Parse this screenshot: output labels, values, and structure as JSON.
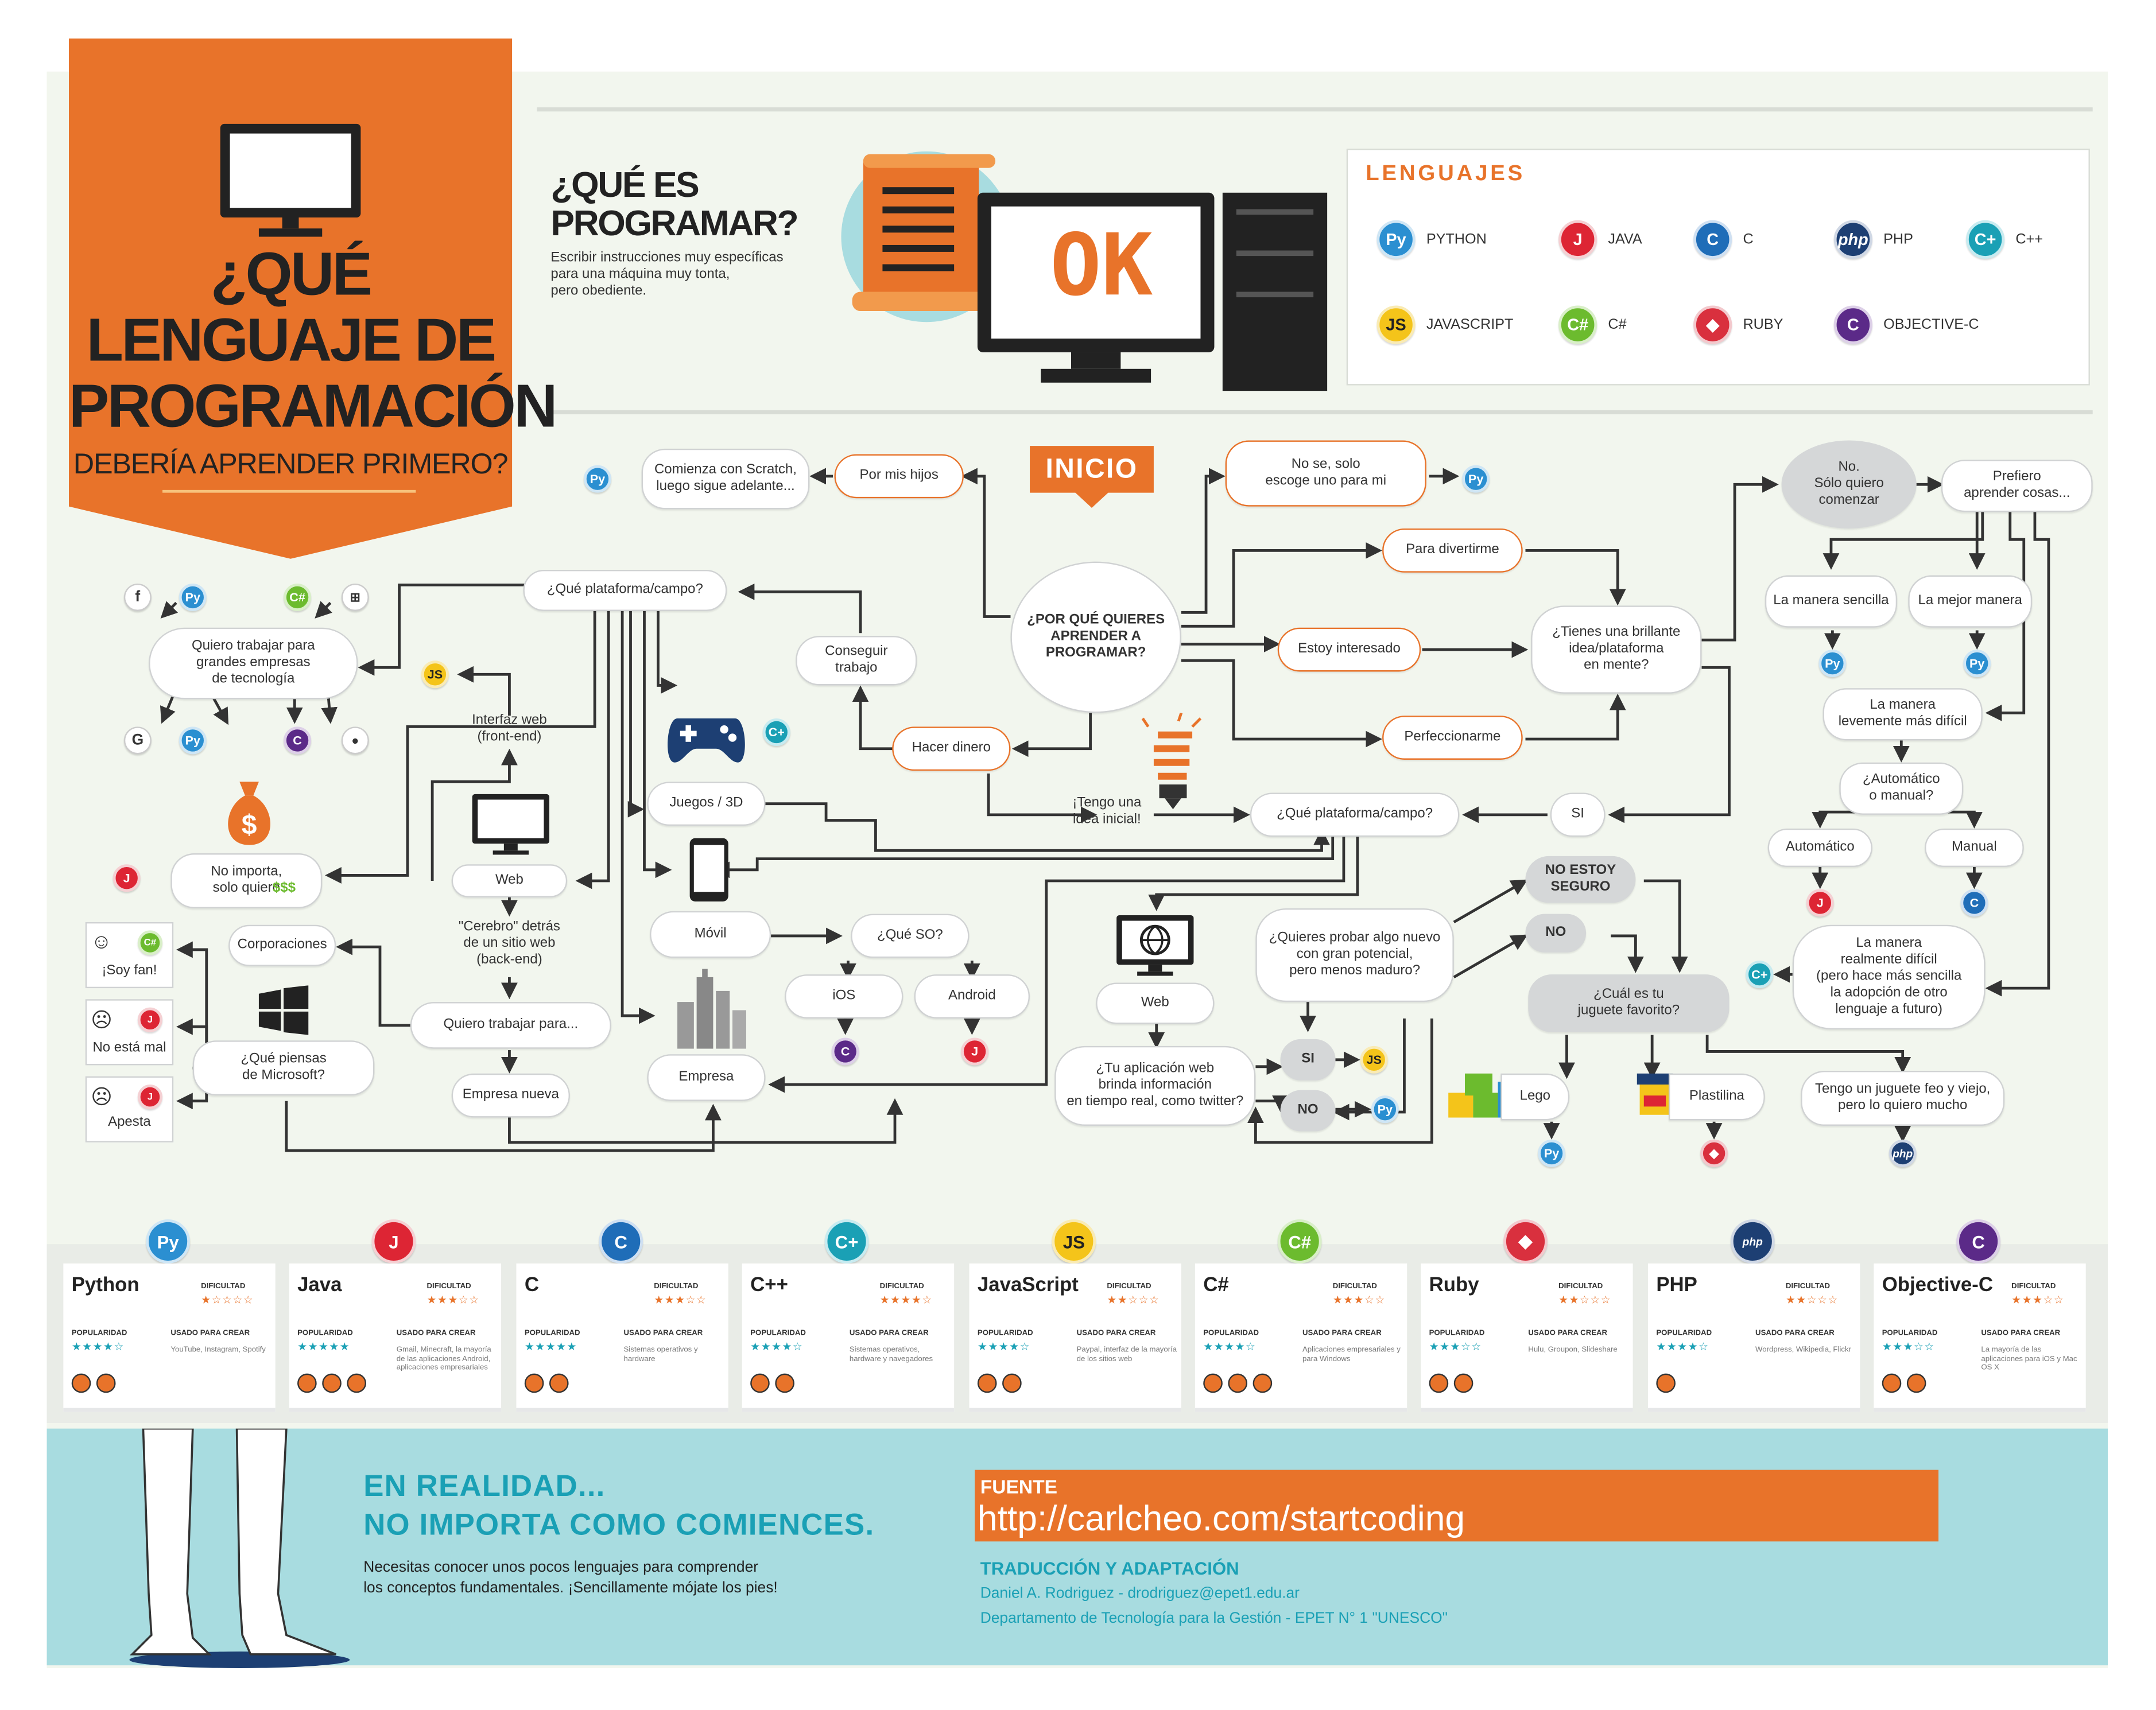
{
  "banner": {
    "title_lines": [
      "¿QUÉ",
      "LENGUAJE DE",
      "PROGRAMACIÓN"
    ],
    "subtitle": "DEBERÍA APRENDER PRIMERO?"
  },
  "intro": {
    "title_lines": [
      "¿QUÉ ES",
      "PROGRAMAR?"
    ],
    "text": "Escribir instrucciones muy específicas\npara una máquina muy tonta,\npero obediente.",
    "screen_text": "OK"
  },
  "languages_box": {
    "title": "LENGUAJES",
    "items": [
      {
        "label": "PYTHON",
        "icon": "python-icon",
        "glyph": "Py"
      },
      {
        "label": "JAVA",
        "icon": "java-icon",
        "glyph": "J"
      },
      {
        "label": "C",
        "icon": "c-icon",
        "glyph": "C"
      },
      {
        "label": "PHP",
        "icon": "php-icon",
        "glyph": "php"
      },
      {
        "label": "C++",
        "icon": "cpp-icon",
        "glyph": "C+"
      },
      {
        "label": "JAVASCRIPT",
        "icon": "javascript-icon",
        "glyph": "JS"
      },
      {
        "label": "C#",
        "icon": "csharp-icon",
        "glyph": "C#"
      },
      {
        "label": "RUBY",
        "icon": "ruby-icon",
        "glyph": "◆"
      },
      {
        "label": "OBJECTIVE-C",
        "icon": "objective-c-icon",
        "glyph": "C"
      }
    ]
  },
  "flow": {
    "start": "INICIO",
    "why": "¿POR QUÉ QUIERES\nAPRENDER A\nPROGRAMAR?",
    "for_kids": "Por mis hijos",
    "scratch": "Comienza con Scratch,\nluego sigue adelante...",
    "dont_know": "No se, solo\nescoge uno para mi",
    "fun": "Para divertirme",
    "interested": "Estoy interesado",
    "improve": "Perfeccionarme",
    "bright_idea": "¿Tienes una brillante\nidea/plataforma\nen mente?",
    "get_job": "Conseguir trabajo",
    "make_money": "Hacer dinero",
    "initial_idea": "¡Tengo una\nidea inicial!",
    "platform_right": "¿Qué plataforma/campo?",
    "yes_right": "SI",
    "platform_left": "¿Qué plataforma/campo?",
    "big_tech": "Quiero trabajar para\ngrandes empresas\nde tecnología",
    "dont_care": "No importa,\nsolo quiero",
    "dollars": "$$$",
    "web_front": "Interfaz web\n(front-end)",
    "web_left": "Web",
    "brain": "\"Cerebro\" detrás\nde un sitio web\n(back-end)",
    "want_work": "Quiero trabajar para...",
    "new_company": "Empresa nueva",
    "corporations": "Corporaciones",
    "microsoft": "¿Qué piensas\nde Microsoft?",
    "fan": "¡Soy fan!",
    "not_bad": "No está mal",
    "sucks": "Apesta",
    "games": "Juegos / 3D",
    "mobile": "Móvil",
    "which_os": "¿Qué SO?",
    "ios": "iOS",
    "android": "Android",
    "enterprise": "Empresa",
    "web_mid": "Web",
    "realtime": "¿Tu aplicación web\nbrinda información\nen tiempo real, como twitter?",
    "try_new": "¿Quieres probar algo nuevo\ncon gran potencial,\npero menos maduro?",
    "si": "SI",
    "no": "NO",
    "not_sure": "NO ESTOY\nSEGURO",
    "no2": "NO",
    "toy": "¿Cuál es tu\njuguete favorito?",
    "lego": "Lego",
    "play_doh": "Plastilina",
    "ugly_toy": "Tengo un juguete feo y viejo,\npero lo quiero mucho",
    "just_start": "No.\nSólo quiero\ncomenzar",
    "prefer": "Prefiero\naprender cosas...",
    "easy": "La manera sencilla",
    "best": "La mejor manera",
    "harder": "La manera\nlevemente más difícil",
    "auto_manual": "¿Automático\no manual?",
    "auto": "Automático",
    "manual": "Manual",
    "hardest": "La manera\nrealmente difícil\n(pero hace más sencilla\nla adopción de otro\nlenguaje a futuro)"
  },
  "cards": [
    {
      "name": "Python",
      "difficulty": "★☆☆☆☆",
      "popularity": "★★★★☆",
      "used_for": "YouTube, Instagram, Spotify",
      "devices": 2,
      "icon": "python-icon",
      "glyph": "Py",
      "cls": "py"
    },
    {
      "name": "Java",
      "difficulty": "★★★☆☆",
      "popularity": "★★★★★",
      "used_for": "Gmail, Minecraft, la mayoría de las aplicaciones Android, aplicaciones empresariales",
      "devices": 3,
      "icon": "java-icon",
      "glyph": "J",
      "cls": "ja"
    },
    {
      "name": "C",
      "difficulty": "★★★☆☆",
      "popularity": "★★★★★",
      "used_for": "Sistemas operativos y hardware",
      "devices": 2,
      "icon": "c-icon",
      "glyph": "C",
      "cls": "c"
    },
    {
      "name": "C++",
      "difficulty": "★★★★☆",
      "popularity": "★★★★☆",
      "used_for": "Sistemas operativos, hardware y navegadores",
      "devices": 2,
      "icon": "cpp-icon",
      "glyph": "C+",
      "cls": "cp"
    },
    {
      "name": "JavaScript",
      "difficulty": "★★☆☆☆",
      "popularity": "★★★★☆",
      "used_for": "Paypal, interfaz de la mayoría de los sitios web",
      "devices": 2,
      "icon": "javascript-icon",
      "glyph": "JS",
      "cls": "js"
    },
    {
      "name": "C#",
      "difficulty": "★★★☆☆",
      "popularity": "★★★★☆",
      "used_for": "Aplicaciones empresariales y para Windows",
      "devices": 3,
      "icon": "csharp-icon",
      "glyph": "C#",
      "cls": "cs"
    },
    {
      "name": "Ruby",
      "difficulty": "★★☆☆☆",
      "popularity": "★★★☆☆",
      "used_for": "Hulu, Groupon, Slideshare",
      "devices": 2,
      "icon": "ruby-icon",
      "glyph": "◆",
      "cls": "rb"
    },
    {
      "name": "PHP",
      "difficulty": "★★☆☆☆",
      "popularity": "★★★★☆",
      "used_for": "Wordpress, Wikipedia, Flickr",
      "devices": 1,
      "icon": "php-icon",
      "glyph": "php",
      "cls": "ph"
    },
    {
      "name": "Objective-C",
      "difficulty": "★★★☆☆",
      "popularity": "★★★☆☆",
      "used_for": "La mayoría de las aplicaciones para iOS y Mac OS X",
      "devices": 2,
      "icon": "objective-c-icon",
      "glyph": "C",
      "cls": "oc"
    }
  ],
  "card_labels": {
    "difficulty": "DIFICULTAD",
    "popularity": "POPULARIDAD",
    "used_for": "USADO PARA CREAR"
  },
  "footer": {
    "headline_lines": [
      "EN REALIDAD...",
      "NO IMPORTA COMO COMIENCES."
    ],
    "text": "Necesitas conocer unos pocos lenguajes para comprender\nlos conceptos fundamentales. ¡Sencillamente mójate los pies!",
    "source_label": "FUENTE",
    "source_url": "http://carlcheo.com/startcoding",
    "translation_title": "TRADUCCIÓN Y ADAPTACIÓN",
    "credit_1": "Daniel A. Rodriguez - drodriguez@epet1.edu.ar",
    "credit_2": "Departamento de Tecnología para la Gestión - EPET N° 1 \"UNESCO\""
  },
  "colors": {
    "orange": "#e8732a",
    "background": "#f2f6ee",
    "teal": "#a8dce0",
    "text": "#333333"
  }
}
